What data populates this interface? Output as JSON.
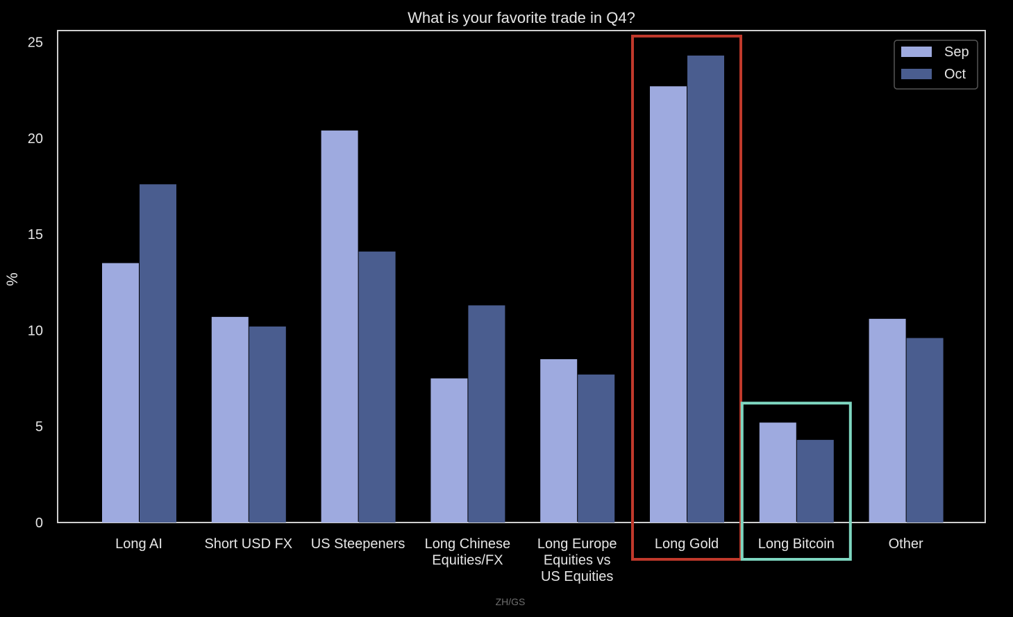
{
  "chart_data": {
    "type": "bar",
    "title": "What is your favorite trade in Q4?",
    "xlabel": "",
    "ylabel": "%",
    "ylim": [
      0,
      25.6
    ],
    "yticks": [
      0,
      5,
      10,
      15,
      20,
      25
    ],
    "categories": [
      [
        "Long AI"
      ],
      [
        "Short USD FX"
      ],
      [
        "US Steepeners"
      ],
      [
        "Long Chinese",
        "Equities/FX"
      ],
      [
        "Long Europe",
        "Equities vs",
        "US Equities"
      ],
      [
        "Long Gold"
      ],
      [
        "Long Bitcoin"
      ],
      [
        "Other"
      ]
    ],
    "series": [
      {
        "name": "Sep",
        "color": "#9eaadf",
        "values": [
          13.5,
          10.7,
          20.4,
          7.5,
          8.5,
          22.7,
          5.2,
          10.6
        ]
      },
      {
        "name": "Oct",
        "color": "#4a5d8f",
        "values": [
          17.6,
          10.2,
          14.1,
          11.3,
          7.7,
          24.3,
          4.3,
          9.6
        ]
      }
    ],
    "legend_position": "top-right",
    "grid": false,
    "highlights": [
      {
        "category_index": 5,
        "color": "#c0392b"
      },
      {
        "category_index": 6,
        "color": "#7ed6c0"
      }
    ]
  },
  "source": "ZH/GS"
}
